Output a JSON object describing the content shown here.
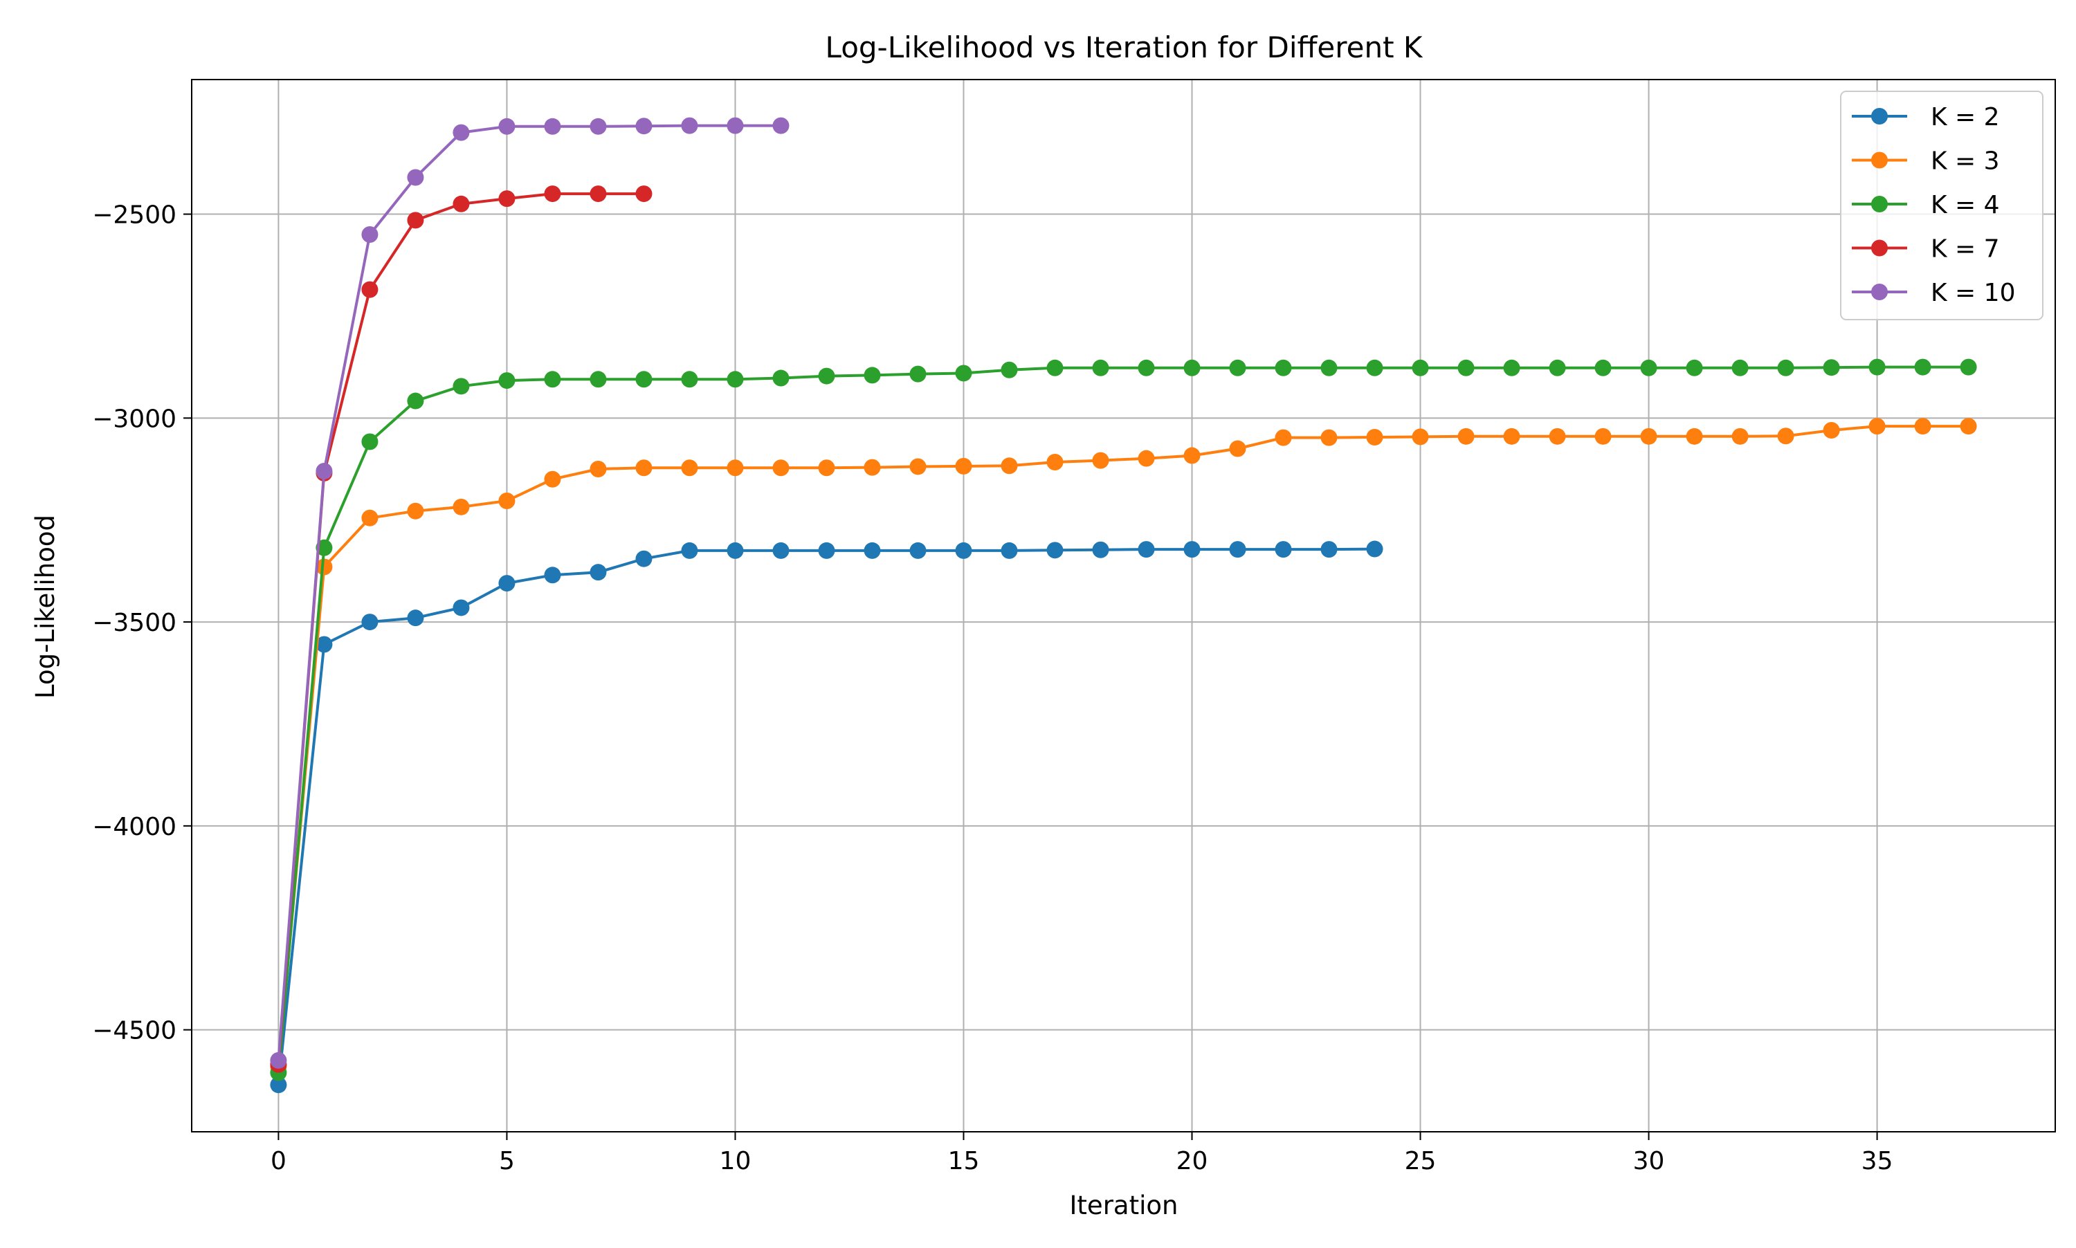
{
  "chart_data": {
    "type": "line",
    "title": "Log-Likelihood vs Iteration for Different K",
    "xlabel": "Iteration",
    "ylabel": "Log-Likelihood",
    "xlim": [
      -1.9,
      38.9
    ],
    "ylim": [
      -4750,
      -2170
    ],
    "xticks": [
      0,
      5,
      10,
      15,
      20,
      25,
      30,
      35
    ],
    "yticks": [
      -4500,
      -4000,
      -3500,
      -3000,
      -2500
    ],
    "grid": true,
    "legend_position": "top-right",
    "series": [
      {
        "name": "K = 2",
        "color": "#1f77b4",
        "x": [
          0,
          1,
          2,
          3,
          4,
          5,
          6,
          7,
          8,
          9,
          10,
          11,
          12,
          13,
          14,
          15,
          16,
          17,
          18,
          19,
          20,
          21,
          22,
          23,
          24
        ],
        "y": [
          -4635,
          -3555,
          -3500,
          -3490,
          -3465,
          -3405,
          -3385,
          -3378,
          -3345,
          -3325,
          -3325,
          -3325,
          -3325,
          -3325,
          -3325,
          -3325,
          -3325,
          -3324,
          -3323,
          -3322,
          -3322,
          -3322,
          -3322,
          -3322,
          -3321
        ]
      },
      {
        "name": "K = 3",
        "color": "#ff7f0e",
        "x": [
          0,
          1,
          2,
          3,
          4,
          5,
          6,
          7,
          8,
          9,
          10,
          11,
          12,
          13,
          14,
          15,
          16,
          17,
          18,
          19,
          20,
          21,
          22,
          23,
          24,
          25,
          26,
          27,
          28,
          29,
          30,
          31,
          32,
          33,
          34,
          35,
          36,
          37
        ],
        "y": [
          -4590,
          -3365,
          -3245,
          -3228,
          -3218,
          -3203,
          -3150,
          -3125,
          -3122,
          -3122,
          -3122,
          -3122,
          -3122,
          -3121,
          -3119,
          -3118,
          -3117,
          -3108,
          -3104,
          -3099,
          -3092,
          -3075,
          -3048,
          -3048,
          -3047,
          -3046,
          -3045,
          -3045,
          -3045,
          -3045,
          -3045,
          -3045,
          -3045,
          -3044,
          -3030,
          -3020,
          -3020,
          -3020
        ]
      },
      {
        "name": "K = 4",
        "color": "#2ca02c",
        "x": [
          0,
          1,
          2,
          3,
          4,
          5,
          6,
          7,
          8,
          9,
          10,
          11,
          12,
          13,
          14,
          15,
          16,
          17,
          18,
          19,
          20,
          21,
          22,
          23,
          24,
          25,
          26,
          27,
          28,
          29,
          30,
          31,
          32,
          33,
          34,
          35,
          36,
          37
        ],
        "y": [
          -4605,
          -3318,
          -3058,
          -2958,
          -2922,
          -2908,
          -2905,
          -2905,
          -2905,
          -2905,
          -2905,
          -2902,
          -2897,
          -2895,
          -2892,
          -2890,
          -2882,
          -2877,
          -2877,
          -2877,
          -2877,
          -2877,
          -2877,
          -2877,
          -2877,
          -2877,
          -2877,
          -2877,
          -2877,
          -2877,
          -2877,
          -2877,
          -2877,
          -2877,
          -2876,
          -2875,
          -2875,
          -2875
        ]
      },
      {
        "name": "K = 7",
        "color": "#d62728",
        "x": [
          0,
          1,
          2,
          3,
          4,
          5,
          6,
          7,
          8
        ],
        "y": [
          -4585,
          -3135,
          -2685,
          -2515,
          -2475,
          -2462,
          -2450,
          -2450,
          -2450
        ]
      },
      {
        "name": "K = 10",
        "color": "#9467bd",
        "x": [
          0,
          1,
          2,
          3,
          4,
          5,
          6,
          7,
          8,
          9,
          10,
          11
        ],
        "y": [
          -4575,
          -3130,
          -2550,
          -2410,
          -2300,
          -2285,
          -2285,
          -2285,
          -2284,
          -2283,
          -2283,
          -2283
        ]
      }
    ]
  }
}
